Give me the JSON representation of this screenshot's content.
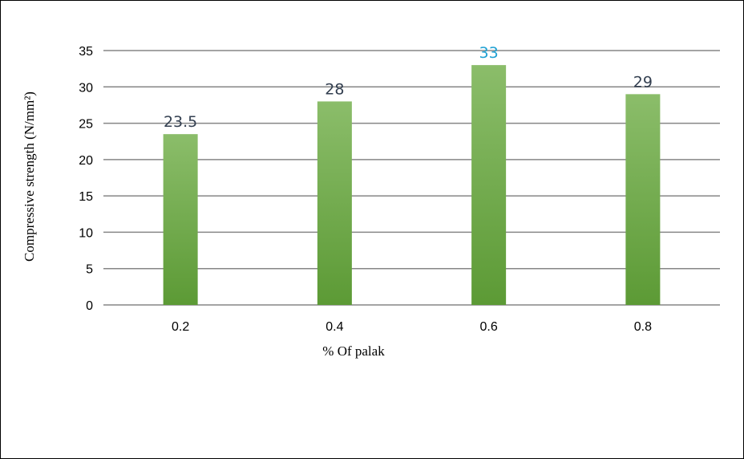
{
  "chart_data": {
    "type": "bar",
    "categories": [
      "0.2",
      "0.4",
      "0.6",
      "0.8"
    ],
    "values": [
      23.5,
      28,
      33,
      29
    ],
    "data_labels": [
      "23.5",
      "28",
      "33",
      "29"
    ],
    "title": "",
    "xlabel": "% Of palak",
    "ylabel": "Compressive strength (N/mm²)",
    "ylim": [
      0,
      35
    ],
    "yticks": [
      0,
      5,
      10,
      15,
      20,
      25,
      30,
      35
    ],
    "ytick_labels": [
      "0",
      "5",
      "10",
      "15",
      "20",
      "25",
      "30",
      "35"
    ],
    "grid": true,
    "legend": "none",
    "colors": {
      "bar_top": "#8bbd6a",
      "bar_bottom": "#5c9a35",
      "gridline": "#868686",
      "label_default": "#333f50",
      "label_highlight": "#1fa0d2"
    },
    "highlighted_label_index": 2
  }
}
